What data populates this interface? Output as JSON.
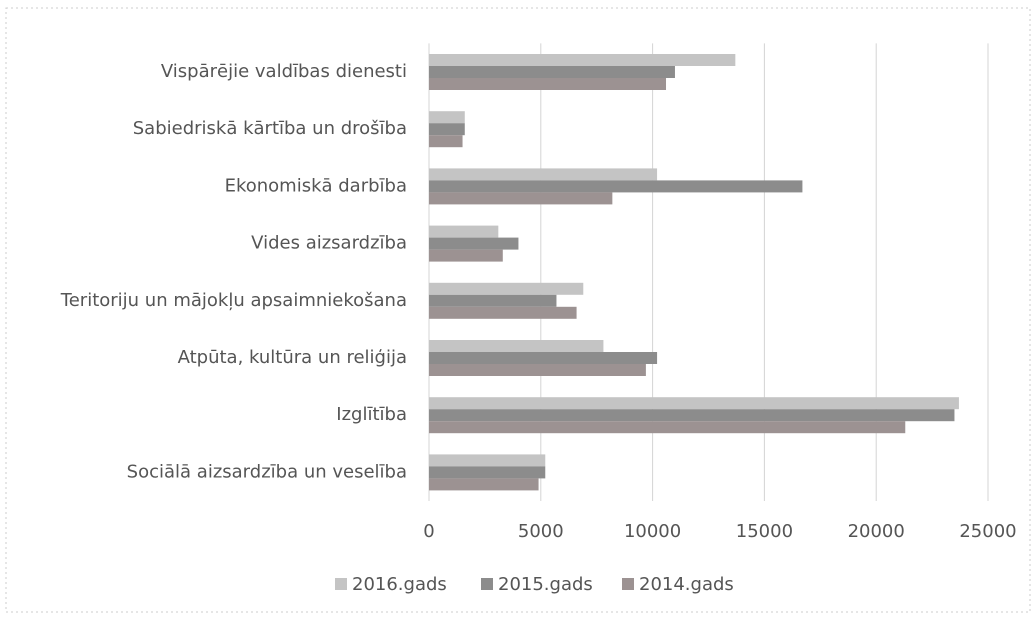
{
  "chart_data": {
    "type": "bar",
    "orientation": "horizontal",
    "categories": [
      "Vispārējie valdības dienesti",
      "Sabiedriskā kārtība un drošība",
      "Ekonomiskā darbība",
      "Vides aizsardzība",
      "Teritoriju un mājokļu apsaimniekošana",
      "Atpūta, kultūra un reliģija",
      "Izglītība",
      "Sociālā aizsardzība un veselība"
    ],
    "series": [
      {
        "name": "2016.gads",
        "color": "#c4c4c4",
        "values": [
          13700,
          1600,
          10200,
          3100,
          6900,
          7800,
          23700,
          5200
        ]
      },
      {
        "name": "2015.gads",
        "color": "#8c8c8c",
        "values": [
          11000,
          1600,
          16700,
          4000,
          5700,
          10200,
          23500,
          5200
        ]
      },
      {
        "name": "2014.gads",
        "color": "#9c9292",
        "values": [
          10600,
          1500,
          8200,
          3300,
          6600,
          9700,
          21300,
          4900
        ]
      }
    ],
    "xlim": [
      0,
      25000
    ],
    "xticks": [
      0,
      5000,
      10000,
      15000,
      20000,
      25000
    ],
    "grid": true,
    "legend": "bottom"
  }
}
